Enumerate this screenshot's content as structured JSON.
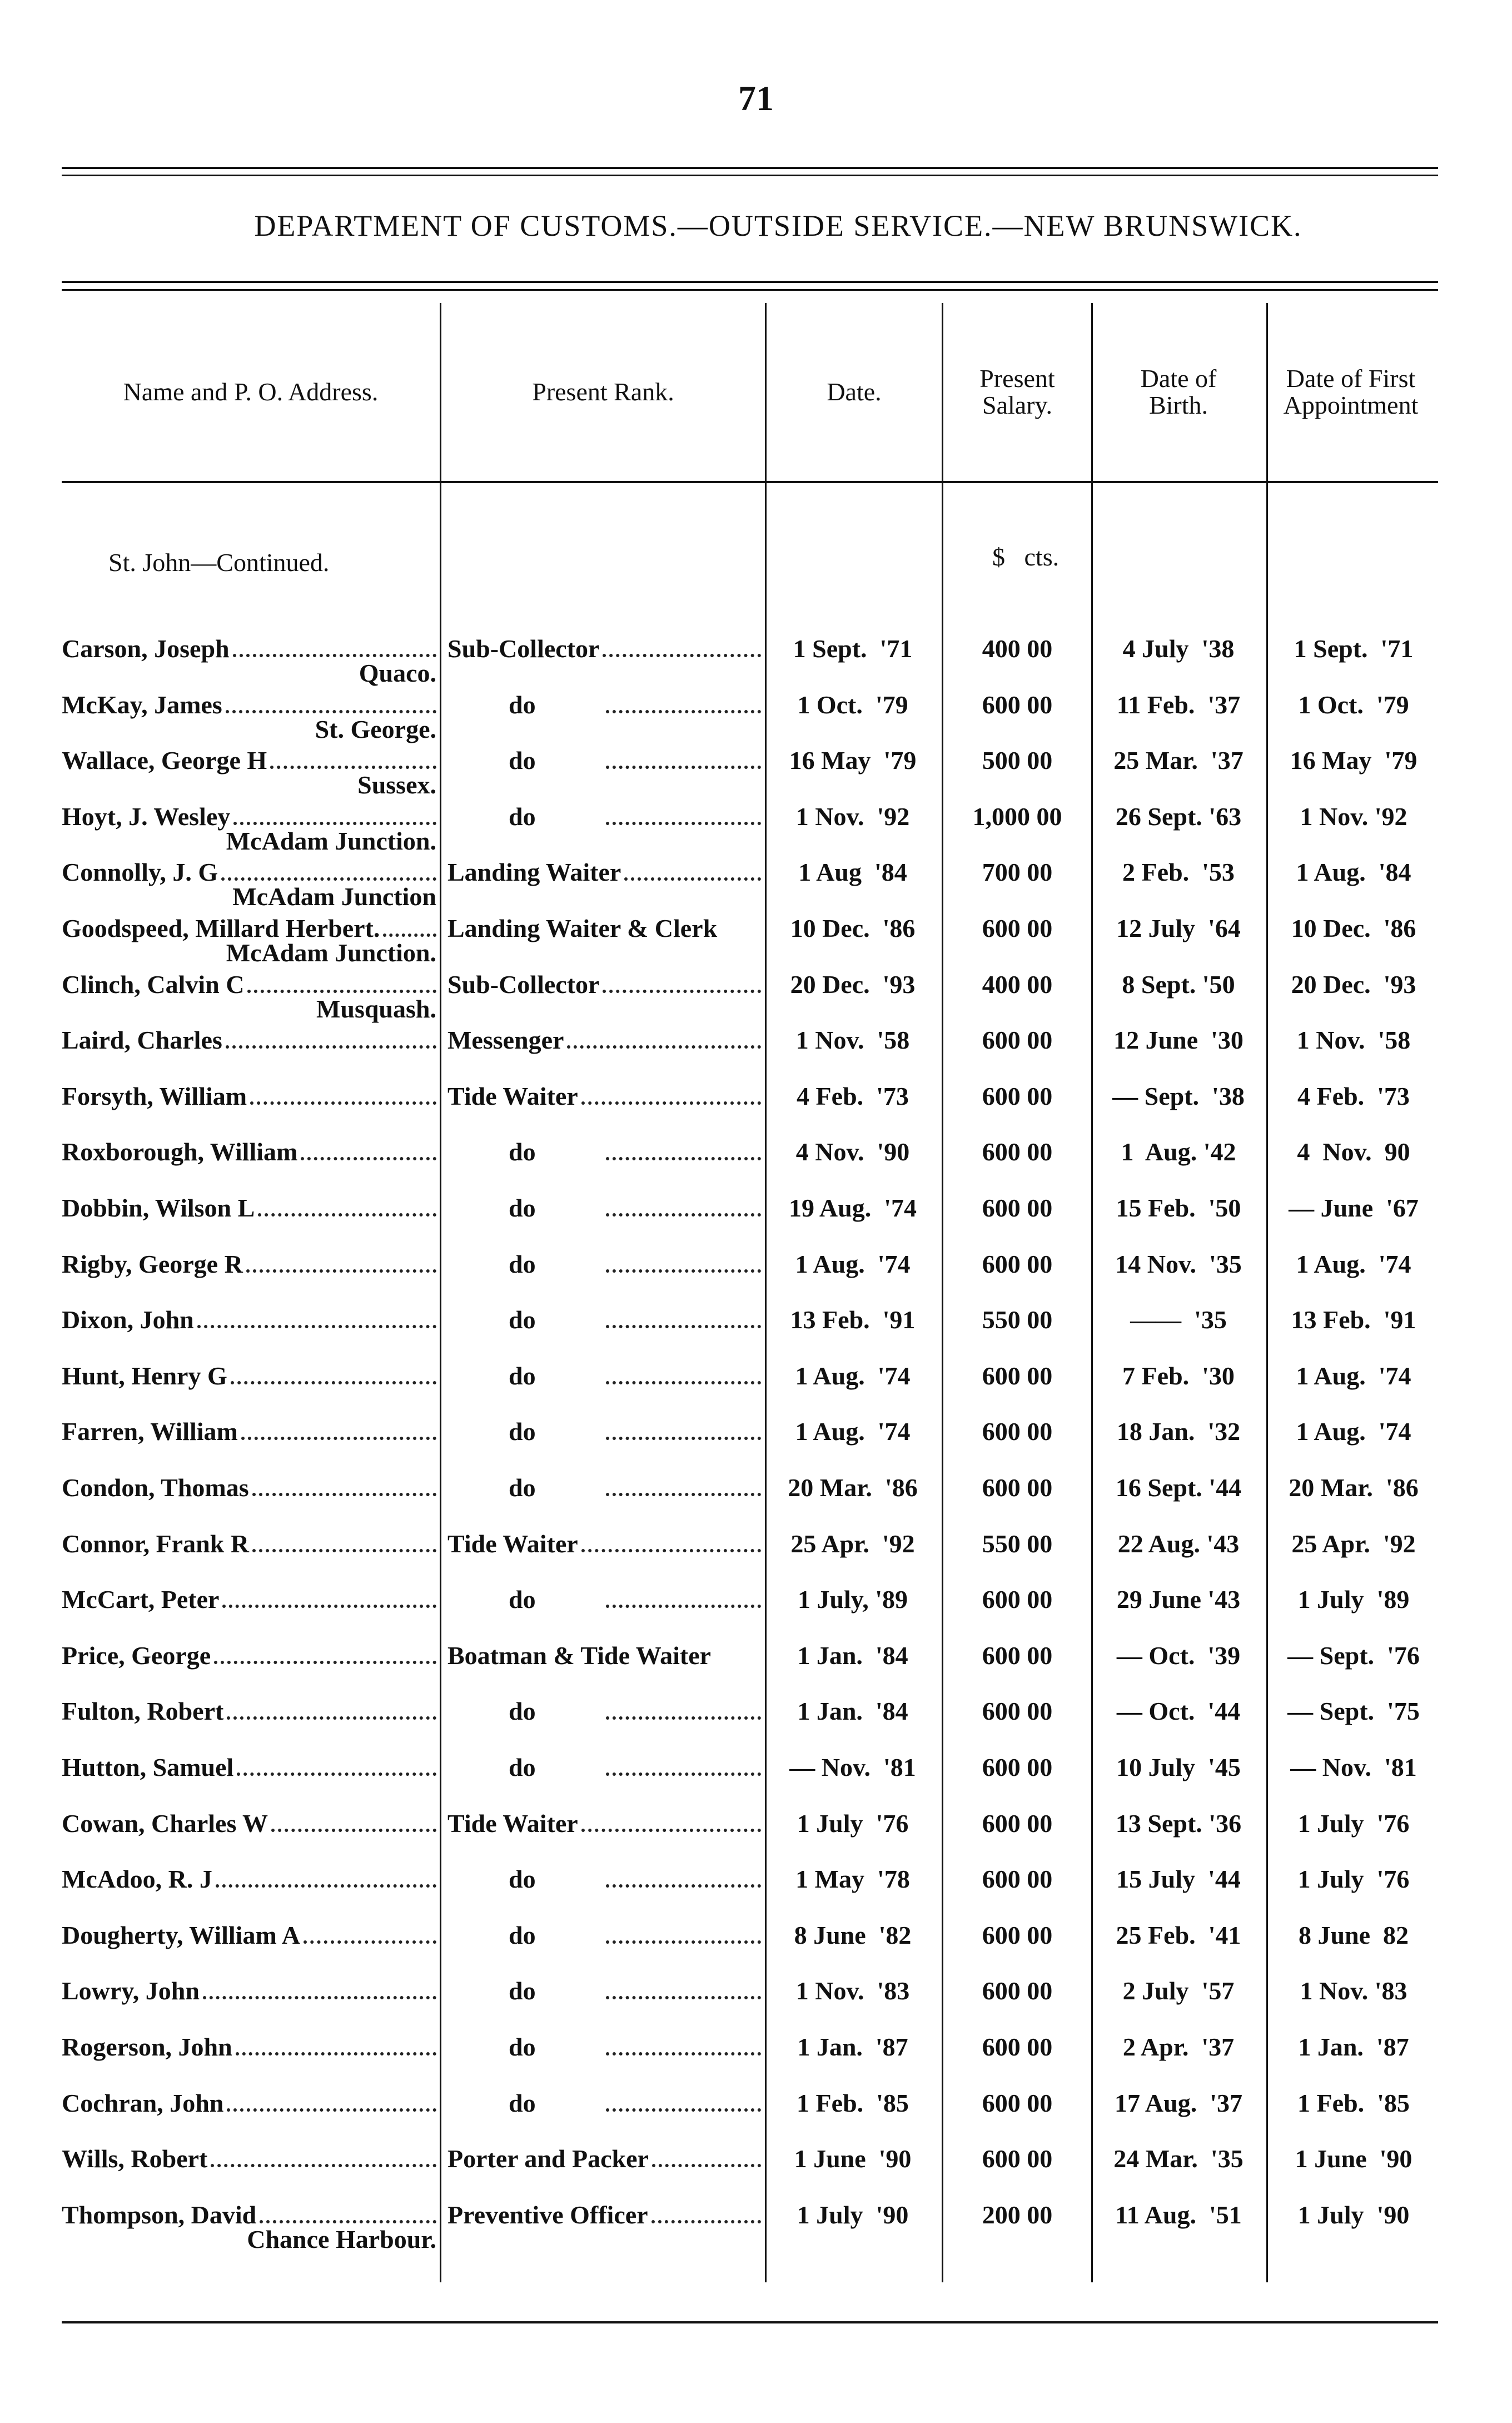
{
  "page_number": "71",
  "title": "DEPARTMENT OF CUSTOMS.—OUTSIDE SERVICE.—NEW BRUNSWICK.",
  "columns": {
    "name": "Name and P. O. Address.",
    "rank": "Present Rank.",
    "date": "Date.",
    "salary": "Present Salary.",
    "birth": "Date of Birth.",
    "first_appointment": "Date of First Appointment"
  },
  "section_label": "St. John—Continued.",
  "salary_units": "$   cts.",
  "rows": [
    {
      "name": "Carson, Joseph",
      "address": "Quaco.",
      "rank": "Sub-Collector",
      "date": "1 Sept.  '71",
      "salary": "400 00",
      "birth": "4 July  '38",
      "first": "1 Sept.  '71"
    },
    {
      "name": "McKay, James",
      "address": "St. George.",
      "rank": "do",
      "date": "1 Oct.  '79",
      "salary": "600 00",
      "birth": "11 Feb.  '37",
      "first": "1 Oct.  '79"
    },
    {
      "name": "Wallace, George H",
      "address": "Sussex.",
      "rank": "do",
      "date": "16 May  '79",
      "salary": "500 00",
      "birth": "25 Mar.  '37",
      "first": "16 May  '79"
    },
    {
      "name": "Hoyt, J. Wesley",
      "address": "McAdam Junction.",
      "rank": "do",
      "date": "1 Nov.  '92",
      "salary": "1,000 00",
      "birth": "26 Sept. '63",
      "first": "1 Nov. '92"
    },
    {
      "name": "Connolly, J. G",
      "address": "McAdam Junction",
      "rank": "Landing Waiter",
      "date": "1 Aug  '84",
      "salary": "700 00",
      "birth": "2 Feb.  '53",
      "first": "1 Aug.  '84"
    },
    {
      "name": "Goodspeed, Millard Herbert.",
      "address": "McAdam Junction.",
      "rank": "Landing Waiter & Clerk",
      "date": "10 Dec.  '86",
      "salary": "600 00",
      "birth": "12 July  '64",
      "first": "10 Dec.  '86"
    },
    {
      "name": "Clinch, Calvin C",
      "address": "Musquash.",
      "rank": "Sub-Collector",
      "date": "20 Dec.  '93",
      "salary": "400 00",
      "birth": "8 Sept. '50",
      "first": "20 Dec.  '93"
    },
    {
      "name": "Laird, Charles",
      "address": "",
      "rank": "Messenger",
      "date": "1 Nov.  '58",
      "salary": "600 00",
      "birth": "12 June  '30",
      "first": "1 Nov.  '58"
    },
    {
      "name": "Forsyth, William",
      "address": "",
      "rank": "Tide Waiter",
      "date": "4 Feb.  '73",
      "salary": "600 00",
      "birth": "— Sept.  '38",
      "first": "4 Feb.  '73"
    },
    {
      "name": "Roxborough, William",
      "address": "",
      "rank": "do",
      "date": "4 Nov.  '90",
      "salary": "600 00",
      "birth": "1  Aug. '42",
      "first": "4  Nov.  90"
    },
    {
      "name": "Dobbin, Wilson L",
      "address": "",
      "rank": "do",
      "date": "19 Aug.  '74",
      "salary": "600 00",
      "birth": "15 Feb.  '50",
      "first": "— June  '67"
    },
    {
      "name": "Rigby, George R",
      "address": "",
      "rank": "do",
      "date": "1 Aug.  '74",
      "salary": "600 00",
      "birth": "14 Nov.  '35",
      "first": "1 Aug.  '74"
    },
    {
      "name": "Dixon, John",
      "address": "",
      "rank": "do",
      "date": "13 Feb.  '91",
      "salary": "550 00",
      "birth": "——  '35",
      "first": "13 Feb.  '91"
    },
    {
      "name": "Hunt, Henry G",
      "address": "",
      "rank": "do",
      "date": "1 Aug.  '74",
      "salary": "600 00",
      "birth": "7 Feb.  '30",
      "first": "1 Aug.  '74"
    },
    {
      "name": "Farren, William",
      "address": "",
      "rank": "do",
      "date": "1 Aug.  '74",
      "salary": "600 00",
      "birth": "18 Jan.  '32",
      "first": "1 Aug.  '74"
    },
    {
      "name": "Condon, Thomas",
      "address": "",
      "rank": "do",
      "date": "20 Mar.  '86",
      "salary": "600 00",
      "birth": "16 Sept. '44",
      "first": "20 Mar.  '86"
    },
    {
      "name": "Connor, Frank R",
      "address": "",
      "rank": "Tide Waiter",
      "date": "25 Apr.  '92",
      "salary": "550 00",
      "birth": "22 Aug. '43",
      "first": "25 Apr.  '92"
    },
    {
      "name": "McCart, Peter",
      "address": "",
      "rank": "do",
      "date": "1 July, '89",
      "salary": "600 00",
      "birth": "29 June '43",
      "first": "1 July  '89"
    },
    {
      "name": "Price, George",
      "address": "",
      "rank": "Boatman & Tide Waiter",
      "date": "1 Jan.  '84",
      "salary": "600 00",
      "birth": "— Oct.  '39",
      "first": "— Sept.  '76"
    },
    {
      "name": "Fulton, Robert",
      "address": "",
      "rank": "do",
      "date": "1 Jan.  '84",
      "salary": "600 00",
      "birth": "— Oct.  '44",
      "first": "— Sept.  '75"
    },
    {
      "name": "Hutton, Samuel",
      "address": "",
      "rank": "do",
      "date": "— Nov.  '81",
      "salary": "600 00",
      "birth": "10 July  '45",
      "first": "— Nov.  '81"
    },
    {
      "name": "Cowan, Charles W",
      "address": "",
      "rank": "Tide Waiter",
      "date": "1 July  '76",
      "salary": "600 00",
      "birth": "13 Sept. '36",
      "first": "1 July  '76"
    },
    {
      "name": "McAdoo, R. J",
      "address": "",
      "rank": "do",
      "date": "1 May  '78",
      "salary": "600 00",
      "birth": "15 July  '44",
      "first": "1 July  '76"
    },
    {
      "name": "Dougherty, William A",
      "address": "",
      "rank": "do",
      "date": "8 June  '82",
      "salary": "600 00",
      "birth": "25 Feb.  '41",
      "first": "8 June  82"
    },
    {
      "name": "Lowry, John",
      "address": "",
      "rank": "do",
      "date": "1 Nov.  '83",
      "salary": "600 00",
      "birth": "2 July  '57",
      "first": "1 Nov. '83"
    },
    {
      "name": "Rogerson, John",
      "address": "",
      "rank": "do",
      "date": "1 Jan.  '87",
      "salary": "600 00",
      "birth": "2 Apr.  '37",
      "first": "1 Jan.  '87"
    },
    {
      "name": "Cochran, John",
      "address": "",
      "rank": "do",
      "date": "1 Feb.  '85",
      "salary": "600 00",
      "birth": "17 Aug.  '37",
      "first": "1 Feb.  '85"
    },
    {
      "name": "Wills, Robert",
      "address": "",
      "rank": "Porter and Packer",
      "date": "1 June  '90",
      "salary": "600 00",
      "birth": "24 Mar.  '35",
      "first": "1 June  '90"
    },
    {
      "name": "Thompson, David",
      "address": "Chance Harbour.",
      "rank": "Preventive Officer",
      "date": "1 July  '90",
      "salary": "200 00",
      "birth": "11 Aug.  '51",
      "first": "1 July  '90"
    }
  ]
}
